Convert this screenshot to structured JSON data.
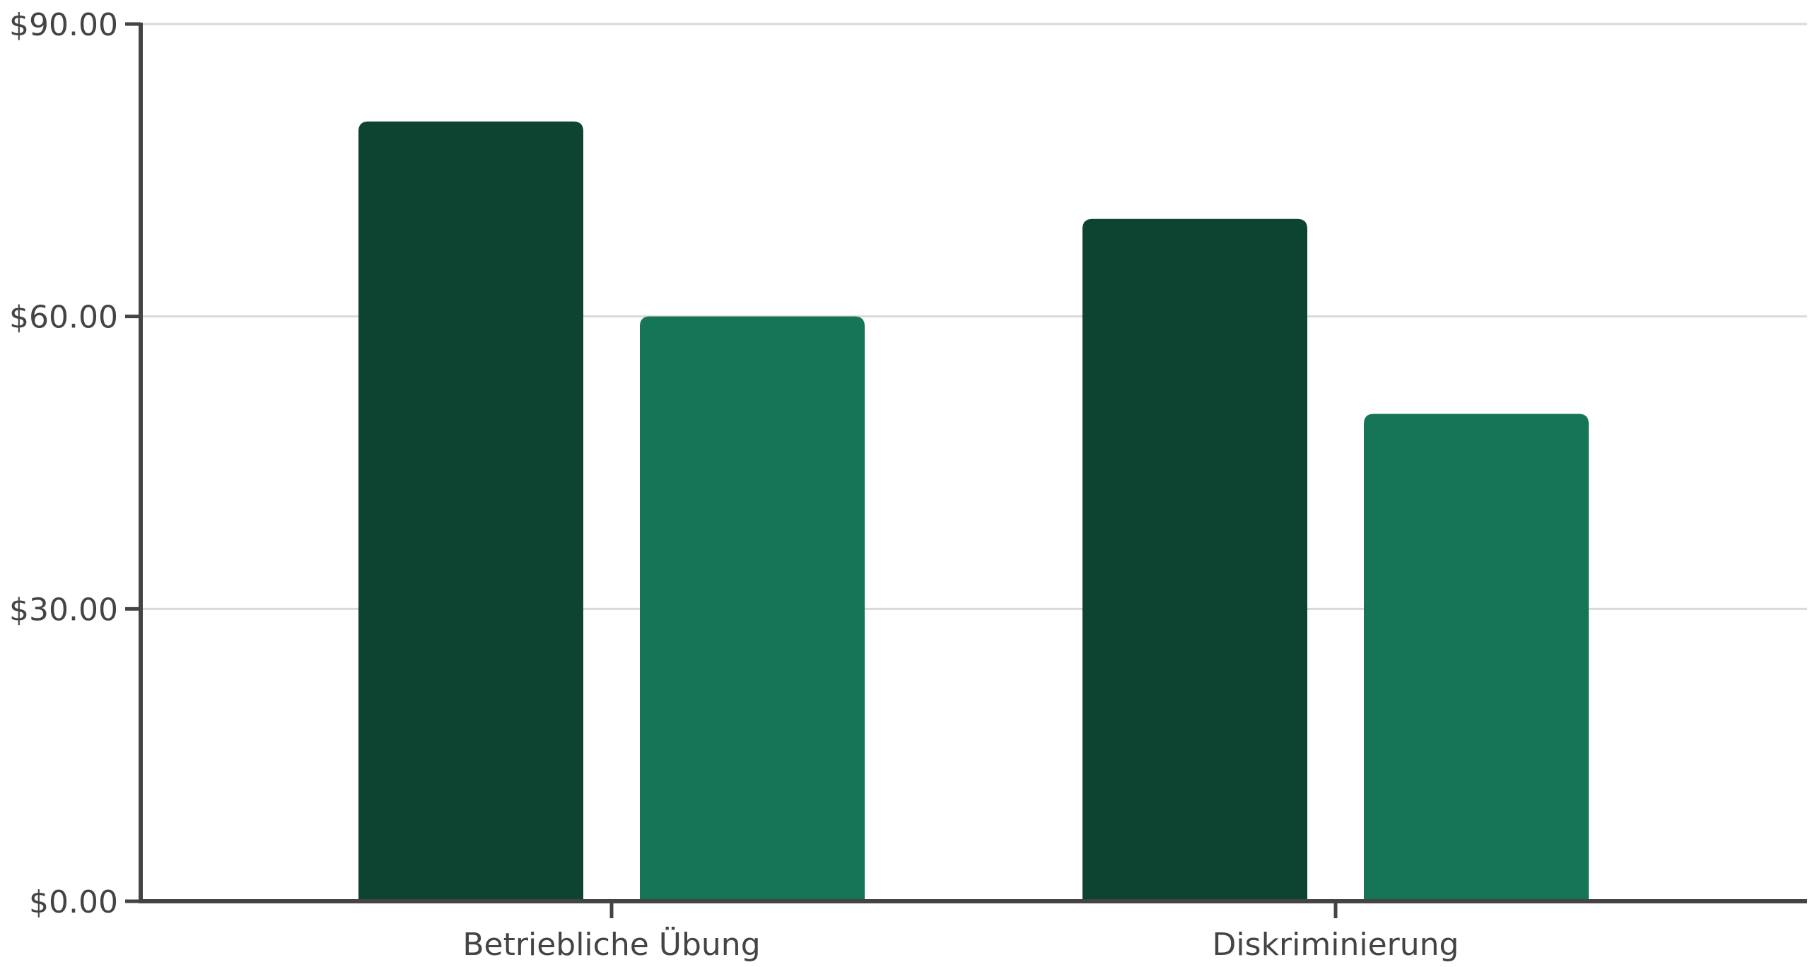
{
  "chart_data": {
    "type": "bar",
    "title": "",
    "xlabel": "",
    "ylabel": "",
    "categories": [
      "Betriebliche Übung",
      "Diskriminierung"
    ],
    "series": [
      {
        "values": [
          80,
          70
        ],
        "color": "#0d4331"
      },
      {
        "values": [
          60,
          50
        ],
        "color": "#167457"
      }
    ],
    "ylim": [
      0,
      90
    ],
    "yticks": [
      0,
      30,
      60,
      90
    ],
    "ytick_labels": [
      "$0.00",
      "$30.00",
      "$60.00",
      "$90.00"
    ],
    "grid": true,
    "legend": "none"
  }
}
